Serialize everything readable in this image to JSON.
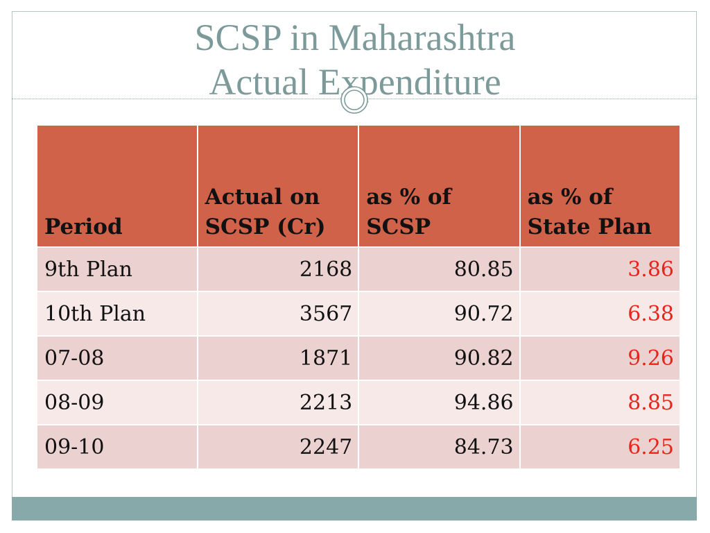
{
  "title": {
    "line1": "SCSP in Maharashtra",
    "line2": "Actual Expenditure"
  },
  "colors": {
    "title": "#7d9a9a",
    "header_bg": "#d0624a",
    "row_odd": "#ebd1cf",
    "row_even": "#f6e9e8",
    "state_plan_text": "#e8251d",
    "footer_bar": "#88a9a9"
  },
  "table": {
    "headers": [
      "Period",
      "Actual on SCSP (Cr)",
      "as % of SCSP",
      "as % of State Plan"
    ],
    "rows": [
      {
        "period": "9th Plan",
        "actual": "2168",
        "pct_scsp": "80.85",
        "pct_state": "3.86"
      },
      {
        "period": "10th Plan",
        "actual": "3567",
        "pct_scsp": "90.72",
        "pct_state": "6.38"
      },
      {
        "period": "07-08",
        "actual": "1871",
        "pct_scsp": "90.82",
        "pct_state": "9.26"
      },
      {
        "period": "08-09",
        "actual": "2213",
        "pct_scsp": "94.86",
        "pct_state": "8.85"
      },
      {
        "period": "09-10",
        "actual": "2247",
        "pct_scsp": "84.73",
        "pct_state": "6.25"
      }
    ]
  }
}
